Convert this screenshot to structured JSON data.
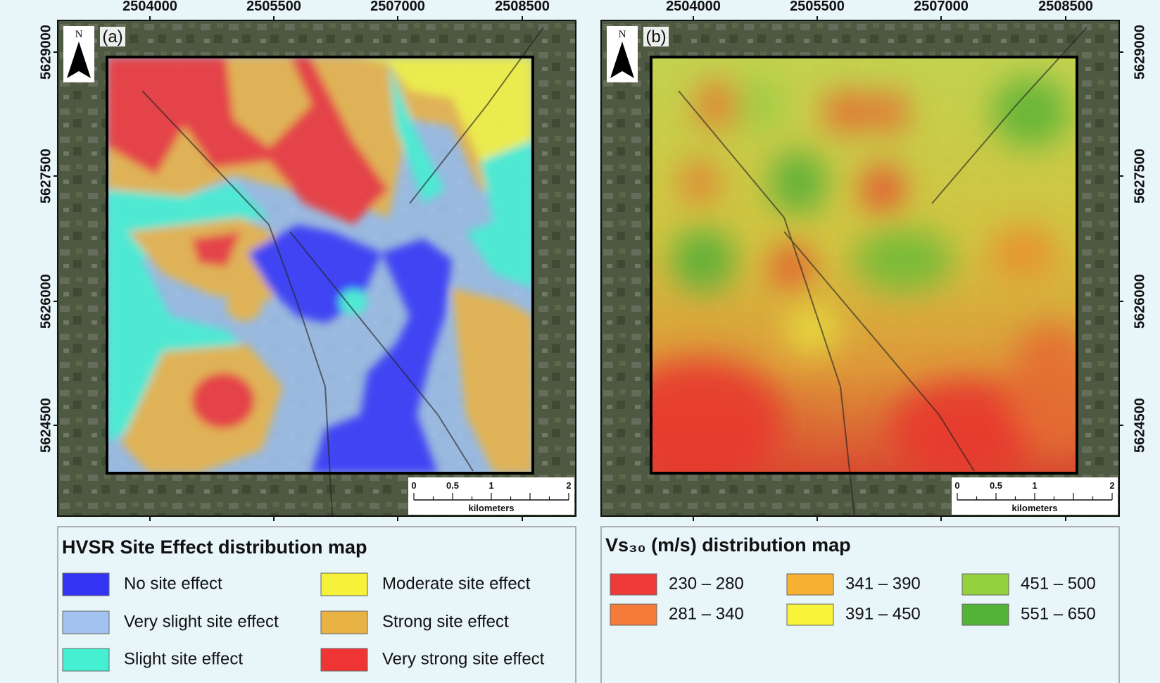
{
  "panels": [
    {
      "label": "(a)",
      "north": "N",
      "x_ticks": [
        "2504000",
        "2505500",
        "2507000",
        "2508500"
      ],
      "y_ticks": [
        "5629000",
        "5627500",
        "5626000",
        "5624500"
      ],
      "scale_bar": {
        "ticks": [
          "0",
          "0.5",
          "1",
          "2"
        ],
        "unit": "kilometers"
      },
      "legend": {
        "title": "HVSR Site Effect distribution map",
        "items": [
          {
            "label": "No site effect",
            "color": "#3434f5"
          },
          {
            "label": "Very slight site effect",
            "color": "#a2c3ef"
          },
          {
            "label": "Slight site effect",
            "color": "#45f0d2"
          },
          {
            "label": "Moderate site effect",
            "color": "#f6f23a"
          },
          {
            "label": "Strong site effect",
            "color": "#e9b244"
          },
          {
            "label": "Very strong site effect",
            "color": "#ef3434"
          }
        ]
      }
    },
    {
      "label": "(b)",
      "north": "N",
      "x_ticks": [
        "2504000",
        "2505500",
        "2507000",
        "2508500"
      ],
      "y_ticks": [
        "5629000",
        "5627500",
        "5626000",
        "5624500"
      ],
      "scale_bar": {
        "ticks": [
          "0",
          "0.5",
          "1",
          "2"
        ],
        "unit": "kilometers"
      },
      "legend": {
        "title": "Vs₃₀ (m/s) distribution map",
        "items": [
          {
            "label": "230 – 280",
            "color": "#f03a3a"
          },
          {
            "label": "281 – 340",
            "color": "#f57b38"
          },
          {
            "label": "341 – 390",
            "color": "#f9b134"
          },
          {
            "label": "391 – 450",
            "color": "#f7f43a"
          },
          {
            "label": "451 – 500",
            "color": "#93d13f"
          },
          {
            "label": "551 – 650",
            "color": "#52b336"
          }
        ]
      }
    }
  ]
}
